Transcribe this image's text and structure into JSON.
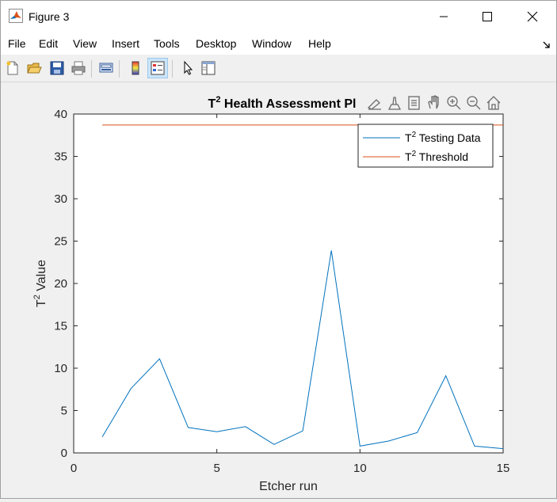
{
  "window": {
    "title": "Figure 3"
  },
  "menu": {
    "items": [
      "File",
      "Edit",
      "View",
      "Insert",
      "Tools",
      "Desktop",
      "Window",
      "Help"
    ]
  },
  "toolbar": {
    "icons": [
      "new-figure-icon",
      "open-file-icon",
      "save-icon",
      "print-icon",
      "link-plot-icon",
      "insert-colorbar-icon",
      "insert-legend-icon",
      "edit-plot-icon",
      "property-inspector-icon"
    ]
  },
  "axes_toolbar": {
    "icons": [
      "brush-icon",
      "data-tips-icon",
      "linked-icon",
      "pan-icon",
      "zoom-in-icon",
      "zoom-out-icon",
      "home-icon"
    ]
  },
  "chart_data": {
    "type": "line",
    "title_main": "T",
    "title_sup": "2",
    "title_rest": " Health Assessment Pl",
    "xlabel": "Etcher run",
    "ylabel_main": "T",
    "ylabel_sup": "2",
    "ylabel_rest": " Value",
    "xlim": [
      0,
      15
    ],
    "ylim": [
      0,
      40
    ],
    "xticks": [
      0,
      5,
      10,
      15
    ],
    "yticks": [
      0,
      5,
      10,
      15,
      20,
      25,
      30,
      35,
      40
    ],
    "grid": false,
    "legend_position": "top-right",
    "series": [
      {
        "name_main": "T",
        "name_sup": "2",
        "name_rest": " Testing Data",
        "color": "#0072bd",
        "x": [
          1,
          2,
          3,
          4,
          5,
          6,
          7,
          8,
          9,
          10,
          11,
          12,
          13,
          14,
          15
        ],
        "y": [
          1.9,
          7.6,
          11.1,
          3.0,
          2.5,
          3.1,
          1.0,
          2.6,
          23.9,
          0.8,
          1.4,
          2.4,
          9.1,
          0.8,
          0.5
        ]
      },
      {
        "name_main": "T",
        "name_sup": "2",
        "name_rest": " Threshold",
        "color": "#d95319",
        "x": [
          1,
          15
        ],
        "y": [
          38.7,
          38.7
        ]
      }
    ]
  }
}
